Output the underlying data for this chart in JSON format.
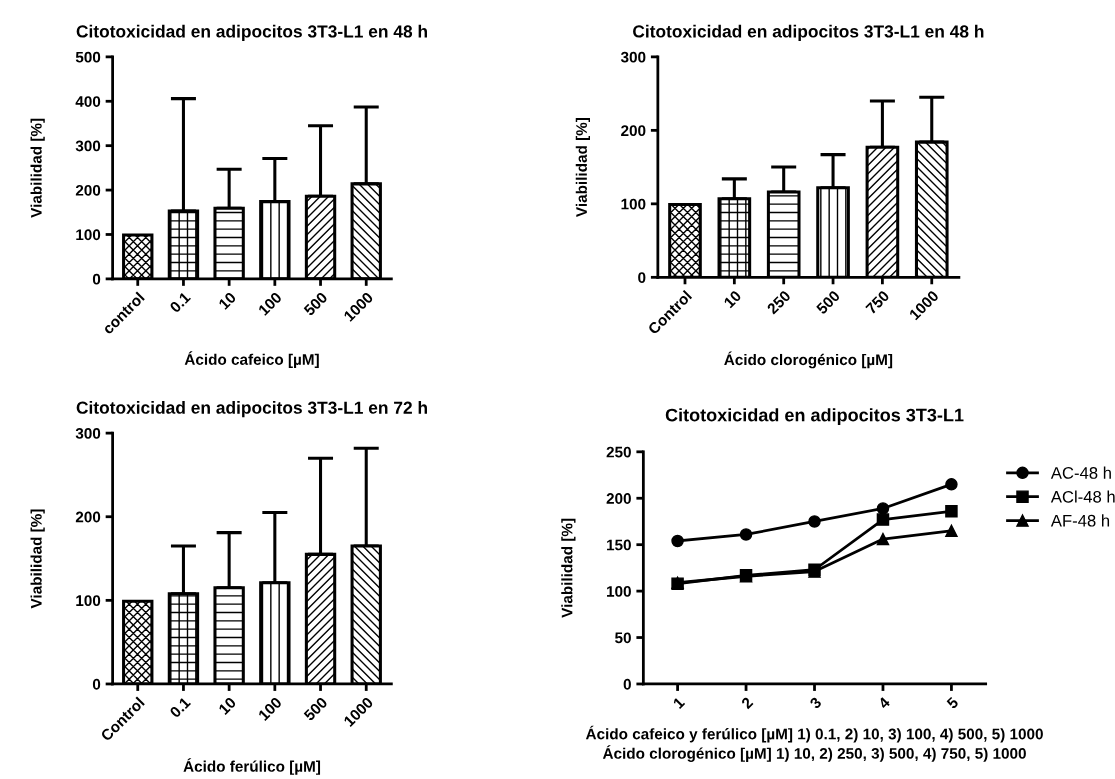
{
  "chart_data": [
    {
      "type": "bar",
      "title": "Citotoxicidad en adipocitos 3T3-L1 en 48 h",
      "xlabel": "Ácido cafeico [µM]",
      "ylabel": "Viabilidad [%]",
      "categories": [
        "control",
        "0.1",
        "10",
        "100",
        "500",
        "1000"
      ],
      "values": [
        99,
        153,
        159,
        174,
        186,
        214
      ],
      "errors": [
        null,
        [
          153,
          406
        ],
        [
          159,
          247
        ],
        [
          174,
          271
        ],
        [
          186,
          345
        ],
        [
          214,
          387
        ]
      ],
      "ylim": [
        0,
        500
      ],
      "yticks": [
        0,
        100,
        200,
        300,
        400,
        500
      ],
      "grid": false
    },
    {
      "type": "bar",
      "title": "Citotoxicidad en adipocitos 3T3-L1 en 48 h",
      "xlabel": "Ácido clorogénico [µM]",
      "ylabel": "Viabilidad [%]",
      "categories": [
        "Control",
        "10",
        "250",
        "500",
        "750",
        "1000"
      ],
      "values": [
        99,
        107,
        116,
        122,
        177,
        184
      ],
      "errors": [
        null,
        [
          107,
          134
        ],
        [
          116,
          150
        ],
        [
          122,
          167
        ],
        [
          177,
          240
        ],
        [
          184,
          245
        ]
      ],
      "ylim": [
        0,
        300
      ],
      "yticks": [
        0,
        100,
        200,
        300
      ],
      "grid": false
    },
    {
      "type": "bar",
      "title": "Citotoxicidad en adipocitos 3T3-L1 en 72 h",
      "xlabel": "Ácido ferúlico [µM]",
      "ylabel": "Viabilidad [%]",
      "categories": [
        "Control",
        "0.1",
        "10",
        "100",
        "500",
        "1000"
      ],
      "values": [
        99,
        108,
        115,
        121,
        155,
        165
      ],
      "errors": [
        null,
        [
          108,
          165
        ],
        [
          115,
          181
        ],
        [
          121,
          205
        ],
        [
          155,
          270
        ],
        [
          165,
          282
        ]
      ],
      "ylim": [
        0,
        300
      ],
      "yticks": [
        0,
        100,
        200,
        300
      ],
      "grid": false
    },
    {
      "type": "line",
      "title": "Citotoxicidad en adipocitos 3T3-L1",
      "xlabel": "Ácido cafeico y ferúlico [µM] 1) 0.1, 2) 10, 3) 100, 4) 500, 5) 1000\nÁcido clorogénico [µM] 1) 10, 2) 250, 3) 500, 4) 750, 5) 1000",
      "ylabel": "Viabilidad [%]",
      "categories": [
        "1",
        "2",
        "3",
        "4",
        "5"
      ],
      "series": [
        {
          "name": "AC-48 h",
          "color": "#000000",
          "marker": "circle",
          "values": [
            154,
            161,
            175,
            189,
            215
          ]
        },
        {
          "name": "ACl-48 h",
          "color": "#000000",
          "marker": "square",
          "values": [
            108,
            117,
            123,
            177,
            186
          ]
        },
        {
          "name": "AF-48 h",
          "color": "#000000",
          "marker": "triangle",
          "values": [
            109,
            116,
            121,
            156,
            165
          ]
        }
      ],
      "ylim": [
        0,
        250
      ],
      "yticks": [
        0,
        50,
        100,
        150,
        200,
        250
      ],
      "grid": false,
      "legend": "right",
      "line_style": "solid"
    }
  ]
}
